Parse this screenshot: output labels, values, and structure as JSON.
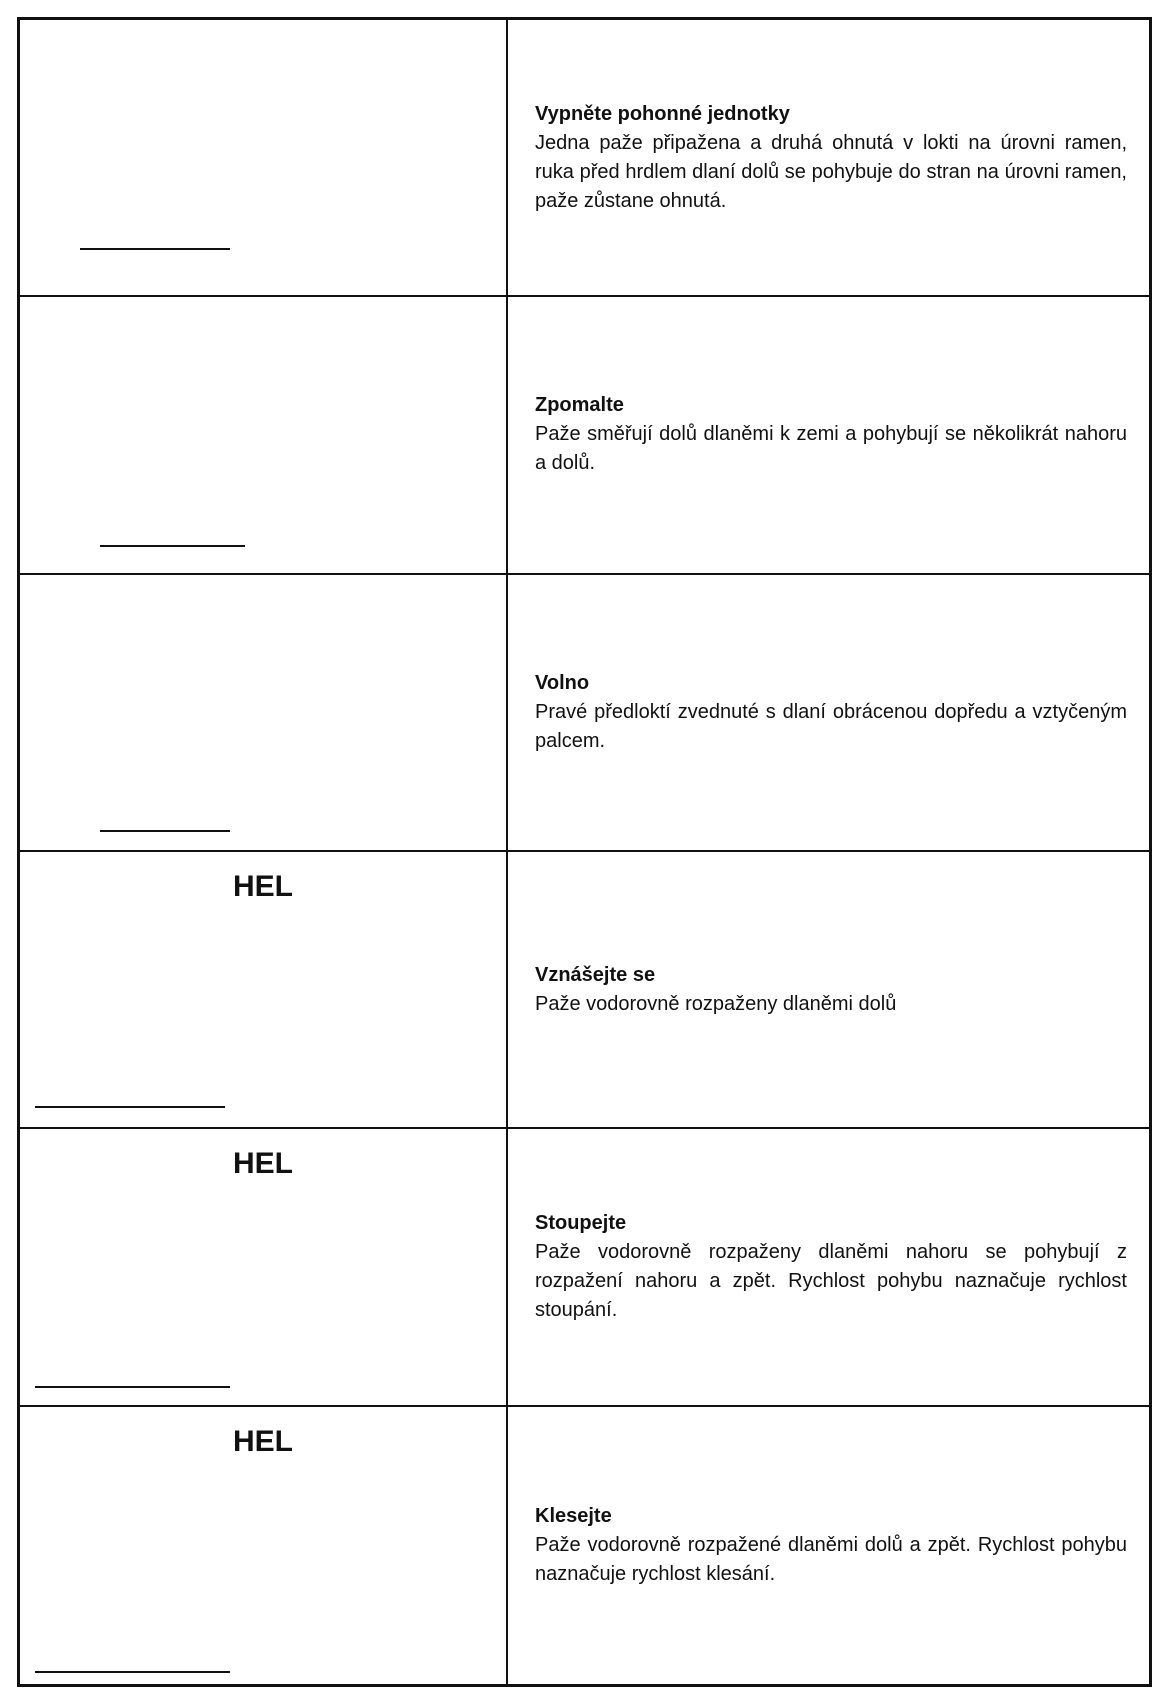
{
  "rows": [
    {
      "title": "Vypněte pohonné jednotky",
      "text": "Jedna paže připažena a druhá ohnutá v lokti na úrovni ramen, ruka před hrdlem dlaní dolů se pohybuje do stran na úrovni ramen, paže zůstane ohnutá."
    },
    {
      "title": "Zpomalte",
      "text": "Paže směřují dolů dlaněmi k zemi a pohybují se několikrát nahoru a dolů."
    },
    {
      "title": "Volno",
      "text": "Pravé předloktí zvednuté s dlaní obrácenou dopředu a vztyčeným palcem."
    },
    {
      "label": "HEL",
      "title": "Vznášejte se",
      "text": "Paže vodorovně rozpaženy dlaněmi dolů"
    },
    {
      "label": "HEL",
      "title": "Stoupejte",
      "text": "Paže vodorovně rozpaženy dlaněmi nahoru se pohybují z rozpažení nahoru a zpět. Rychlost pohybu naznačuje rychlost stoupání."
    },
    {
      "label": "HEL",
      "title": "Klesejte",
      "text": "Paže vodorovně rozpažené dlaněmi dolů a zpět. Rychlost pohybu naznačuje rychlost klesání."
    }
  ]
}
